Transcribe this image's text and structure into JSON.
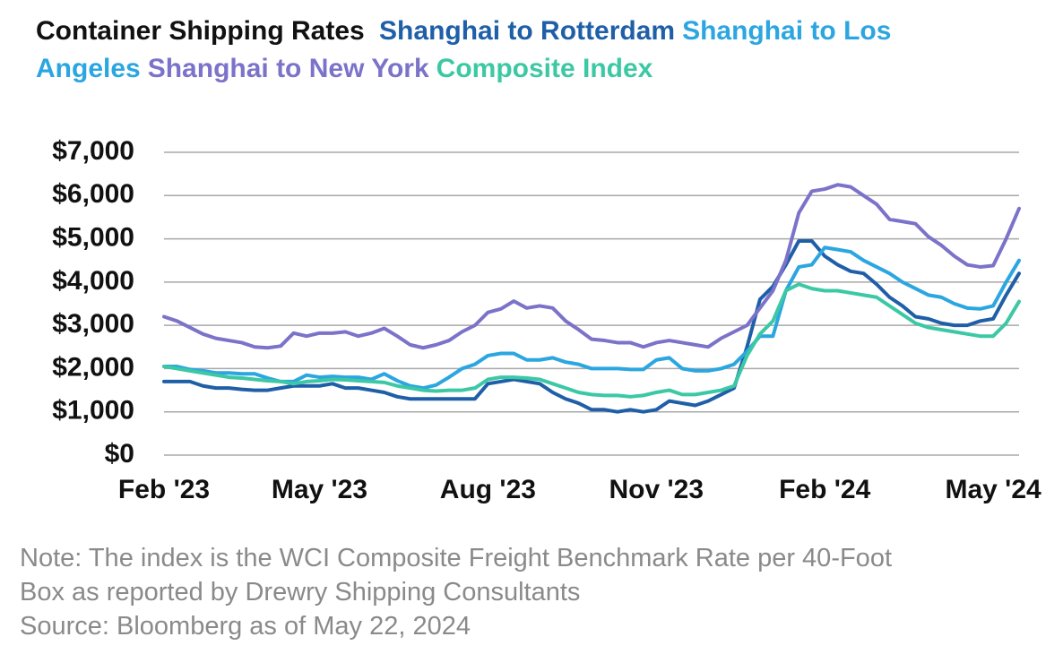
{
  "chart_data": {
    "type": "line",
    "title": "Container Shipping Rates",
    "categories": [
      "Feb '23",
      null,
      null,
      null,
      null,
      null,
      null,
      null,
      null,
      null,
      null,
      null,
      "May '23",
      null,
      null,
      null,
      null,
      null,
      null,
      null,
      null,
      null,
      null,
      null,
      null,
      "Aug '23",
      null,
      null,
      null,
      null,
      null,
      null,
      null,
      null,
      null,
      null,
      null,
      null,
      "Nov '23",
      null,
      null,
      null,
      null,
      null,
      null,
      null,
      null,
      null,
      null,
      null,
      null,
      "Feb '24",
      null,
      null,
      null,
      null,
      null,
      null,
      null,
      null,
      null,
      null,
      null,
      null,
      "May '24",
      null,
      null
    ],
    "series": [
      {
        "name": "Shanghai to Rotterdam",
        "color": "#1f5fa8",
        "values": [
          1700,
          1700,
          1700,
          1600,
          1550,
          1550,
          1520,
          1500,
          1500,
          1550,
          1600,
          1600,
          1600,
          1650,
          1550,
          1550,
          1500,
          1450,
          1350,
          1300,
          1300,
          1300,
          1300,
          1300,
          1300,
          1650,
          1700,
          1750,
          1700,
          1650,
          1450,
          1300,
          1200,
          1050,
          1050,
          1000,
          1050,
          1000,
          1050,
          1250,
          1200,
          1150,
          1250,
          1400,
          1550,
          2500,
          3600,
          3900,
          4400,
          4950,
          4950,
          4600,
          4400,
          4250,
          4200,
          3950,
          3650,
          3450,
          3200,
          3150,
          3050,
          3000,
          3000,
          3100,
          3150,
          3700,
          4200
        ]
      },
      {
        "name": "Shanghai to Los Angeles",
        "color": "#2ba6e0",
        "values": [
          2050,
          2050,
          1980,
          1950,
          1900,
          1900,
          1880,
          1880,
          1780,
          1700,
          1700,
          1850,
          1800,
          1820,
          1800,
          1800,
          1750,
          1880,
          1720,
          1600,
          1550,
          1620,
          1800,
          2000,
          2100,
          2300,
          2350,
          2350,
          2200,
          2200,
          2250,
          2150,
          2100,
          2000,
          2000,
          2000,
          1980,
          1980,
          2200,
          2250,
          2000,
          1950,
          1950,
          2000,
          2100,
          2400,
          2750,
          2750,
          3800,
          4350,
          4400,
          4800,
          4750,
          4700,
          4500,
          4350,
          4200,
          4000,
          3850,
          3700,
          3650,
          3500,
          3400,
          3380,
          3450,
          4000,
          4500
        ]
      },
      {
        "name": "Shanghai to New York",
        "color": "#7b73c9",
        "values": [
          3200,
          3100,
          2950,
          2800,
          2700,
          2650,
          2600,
          2500,
          2480,
          2520,
          2820,
          2750,
          2820,
          2820,
          2850,
          2750,
          2820,
          2930,
          2750,
          2550,
          2480,
          2550,
          2650,
          2850,
          3000,
          3300,
          3380,
          3560,
          3400,
          3450,
          3400,
          3100,
          2900,
          2680,
          2650,
          2600,
          2600,
          2500,
          2600,
          2650,
          2600,
          2550,
          2500,
          2700,
          2850,
          3000,
          3400,
          3800,
          4500,
          5600,
          6100,
          6150,
          6250,
          6200,
          6000,
          5800,
          5450,
          5400,
          5350,
          5050,
          4850,
          4600,
          4400,
          4350,
          4380,
          5000,
          5700
        ]
      },
      {
        "name": "Composite Index",
        "color": "#3cc8a5",
        "values": [
          2050,
          2000,
          1950,
          1900,
          1850,
          1800,
          1780,
          1750,
          1720,
          1700,
          1650,
          1700,
          1720,
          1750,
          1740,
          1720,
          1700,
          1680,
          1600,
          1550,
          1500,
          1480,
          1500,
          1500,
          1550,
          1750,
          1800,
          1800,
          1780,
          1750,
          1650,
          1550,
          1450,
          1400,
          1380,
          1380,
          1350,
          1380,
          1450,
          1500,
          1400,
          1400,
          1450,
          1500,
          1600,
          2300,
          2800,
          3100,
          3800,
          3950,
          3850,
          3800,
          3800,
          3750,
          3700,
          3650,
          3450,
          3250,
          3050,
          2950,
          2900,
          2850,
          2800,
          2750,
          2750,
          3050,
          3550
        ]
      }
    ],
    "ylim": [
      0,
      7000
    ],
    "yticks": [
      {
        "value": 0,
        "label": "$0"
      },
      {
        "value": 1000,
        "label": "$1,000"
      },
      {
        "value": 2000,
        "label": "$2,000"
      },
      {
        "value": 3000,
        "label": "$3,000"
      },
      {
        "value": 4000,
        "label": "$4,000"
      },
      {
        "value": 5000,
        "label": "$5,000"
      },
      {
        "value": 6000,
        "label": "$6,000"
      },
      {
        "value": 7000,
        "label": "$7,000"
      }
    ],
    "grid": true,
    "notes": [
      "Note: The index is the WCI Composite Freight Benchmark Rate per 40-Foot",
      "Box as reported by Drewry Shipping Consultants",
      "Source: Bloomberg as of May 22, 2024"
    ]
  }
}
